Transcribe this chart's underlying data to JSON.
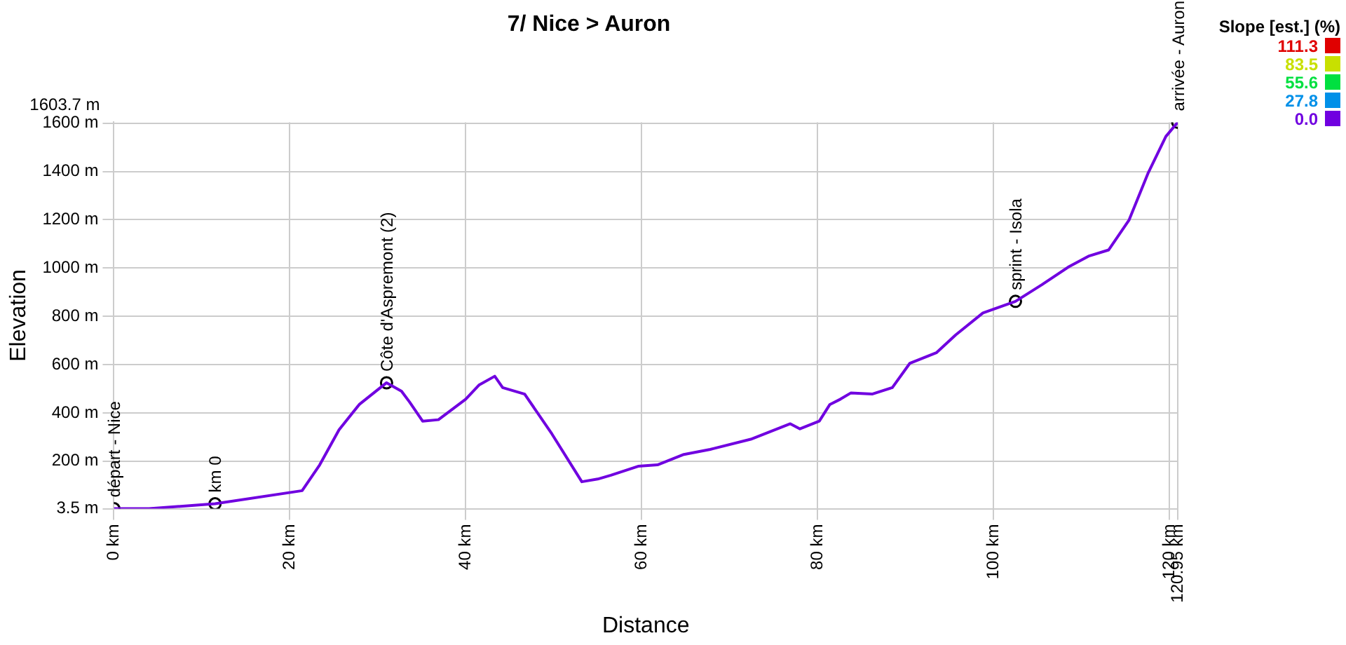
{
  "chart_data": {
    "type": "line",
    "title": "7/ Nice > Auron",
    "xlabel": "Distance",
    "ylabel": "Elevation",
    "clabel": "Slope [est.] (%)",
    "clim": [
      0,
      111.3
    ],
    "cticks": [
      111.3,
      83.5,
      55.6,
      27.8,
      {
        "value": 0,
        "label": "0.0"
      }
    ],
    "xlim": [
      0,
      120.95
    ],
    "xticks": [
      {
        "value": 0,
        "label": "0 km"
      },
      {
        "value": 20,
        "label": "20 km"
      },
      {
        "value": 40,
        "label": "40 km"
      },
      {
        "value": 60,
        "label": "60 km"
      },
      {
        "value": 80,
        "label": "80 km"
      },
      {
        "value": 100,
        "label": "100 km"
      },
      {
        "value": 120,
        "label": "120 km"
      },
      {
        "value": 120.95,
        "label": "120.95 km"
      }
    ],
    "ylim": [
      3.5,
      1603.7
    ],
    "yticks": [
      {
        "value": 3.5,
        "label": "3.5 m"
      },
      {
        "value": 200,
        "label": "200 m"
      },
      {
        "value": 400,
        "label": "400 m"
      },
      {
        "value": 600,
        "label": "600 m"
      },
      {
        "value": 800,
        "label": "800 m"
      },
      {
        "value": 1000,
        "label": "1000 m"
      },
      {
        "value": 1200,
        "label": "1200 m"
      },
      {
        "value": 1400,
        "label": "1400 m"
      },
      {
        "value": 1600,
        "label": "1600 m"
      }
    ],
    "grid": true,
    "legend": false,
    "series": [
      {
        "color": "#7000e0",
        "marker": "none",
        "x": [
          0,
          4,
          11.5,
          21.4,
          23.4,
          25.6,
          27.9,
          31,
          32.7,
          33.6,
          35.1,
          36.9,
          40,
          41.5,
          43.3,
          44.2,
          46.7,
          49.8,
          53.2,
          55,
          56.5,
          59.6,
          61.8,
          64.8,
          67.8,
          72.4,
          76.9,
          78,
          80.2,
          81.4,
          82.6,
          83.8,
          86.2,
          88.5,
          90.5,
          93.5,
          95.7,
          98.8,
          102.5,
          105.5,
          108.6,
          110.8,
          113.1,
          115.4,
          117.6,
          119.6,
          120.95
        ],
        "values": [
          3.5,
          3.5,
          24,
          78,
          185,
          330,
          435,
          525,
          490,
          446,
          366,
          372,
          457,
          515,
          552,
          505,
          478,
          313,
          115,
          126,
          142,
          179,
          185,
          228,
          249,
          291,
          355,
          334,
          366,
          435,
          457,
          483,
          478,
          505,
          606,
          649,
          723,
          814,
          862,
          931,
          1006,
          1049,
          1075,
          1198,
          1395,
          1545,
          1603.7
        ]
      },
      {
        "type": "scatter",
        "color": "#000000",
        "marker": "circle",
        "x": [
          0,
          11.5,
          31,
          102.5,
          120.95
        ],
        "values": [
          3.5,
          24,
          525,
          862,
          1603.7
        ]
      }
    ],
    "annotations": [
      "1603.7 m",
      {
        "text": "départ - Nice",
        "x": 0,
        "y": 3.5
      },
      {
        "text": "km 0",
        "x": 11.5,
        "y": 24
      },
      {
        "text": "Côte d'Aspremont (2)",
        "x": 31,
        "y": 525
      },
      {
        "text": "sprint - Isola",
        "x": 102.5,
        "y": 862
      },
      {
        "text": "arrivée - Auron",
        "x": 120.95,
        "y": 1603.7
      }
    ]
  }
}
